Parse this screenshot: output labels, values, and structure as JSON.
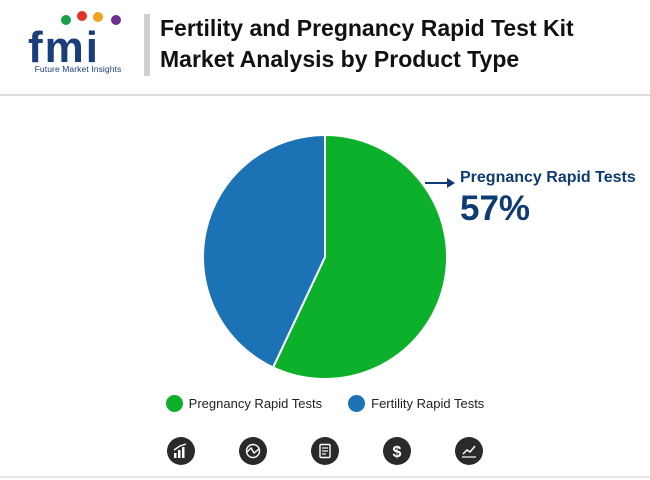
{
  "brand": {
    "logo_text": "fmi",
    "tagline": "Future Market Insights"
  },
  "title": "Fertility and Pregnancy Rapid Test Kit Market Analysis by Product Type",
  "chart_data": {
    "type": "pie",
    "title": "",
    "slices": [
      {
        "label": "Pregnancy Rapid Tests",
        "value": 57,
        "color": "#0db02b"
      },
      {
        "label": "Fertility Rapid Tests",
        "value": 43,
        "color": "#1b73b5"
      }
    ],
    "start_angle_deg": 0,
    "direction": "clockwise",
    "legend_position": "bottom",
    "callout": {
      "label": "Pregnancy Rapid Tests",
      "value_text": "57%"
    }
  },
  "legend": [
    {
      "label": "Pregnancy Rapid Tests",
      "color": "#0db02b"
    },
    {
      "label": "Fertility Rapid Tests",
      "color": "#1b73b5"
    }
  ],
  "footer_icons": [
    "bar-chart-growth-icon",
    "globe-chart-icon",
    "document-report-icon",
    "dollar-icon",
    "line-chart-icon"
  ]
}
